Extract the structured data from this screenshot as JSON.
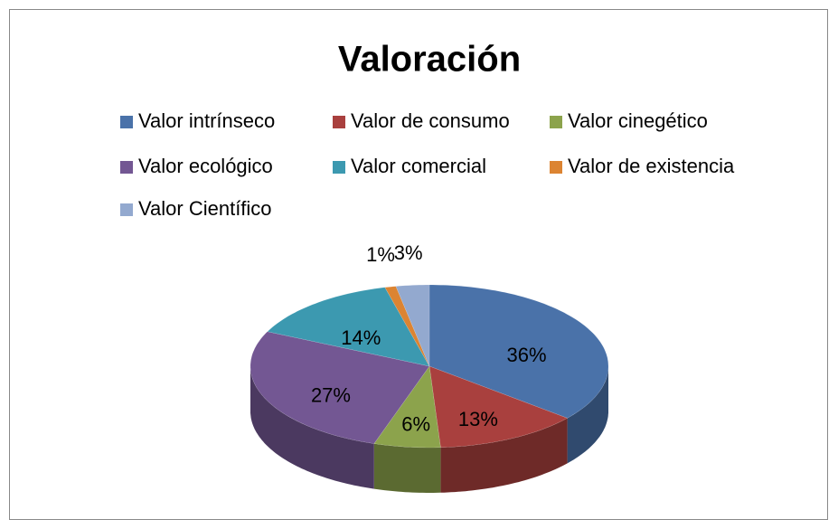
{
  "chart_data": {
    "type": "pie",
    "title": "Valoración",
    "categories": [
      "Valor intrínseco",
      "Valor de consumo",
      "Valor cinegético",
      "Valor ecológico",
      "Valor comercial",
      "Valor de existencia",
      "Valor Científico"
    ],
    "values": [
      36,
      13,
      6,
      27,
      14,
      1,
      3
    ],
    "value_labels": [
      "36%",
      "13%",
      "6%",
      "27%",
      "14%",
      "1%",
      "3%"
    ],
    "colors": [
      "#4a72a9",
      "#a9403e",
      "#8ca34c",
      "#735793",
      "#3c99b0",
      "#dc8432",
      "#93a9cf"
    ],
    "legend": "top"
  }
}
